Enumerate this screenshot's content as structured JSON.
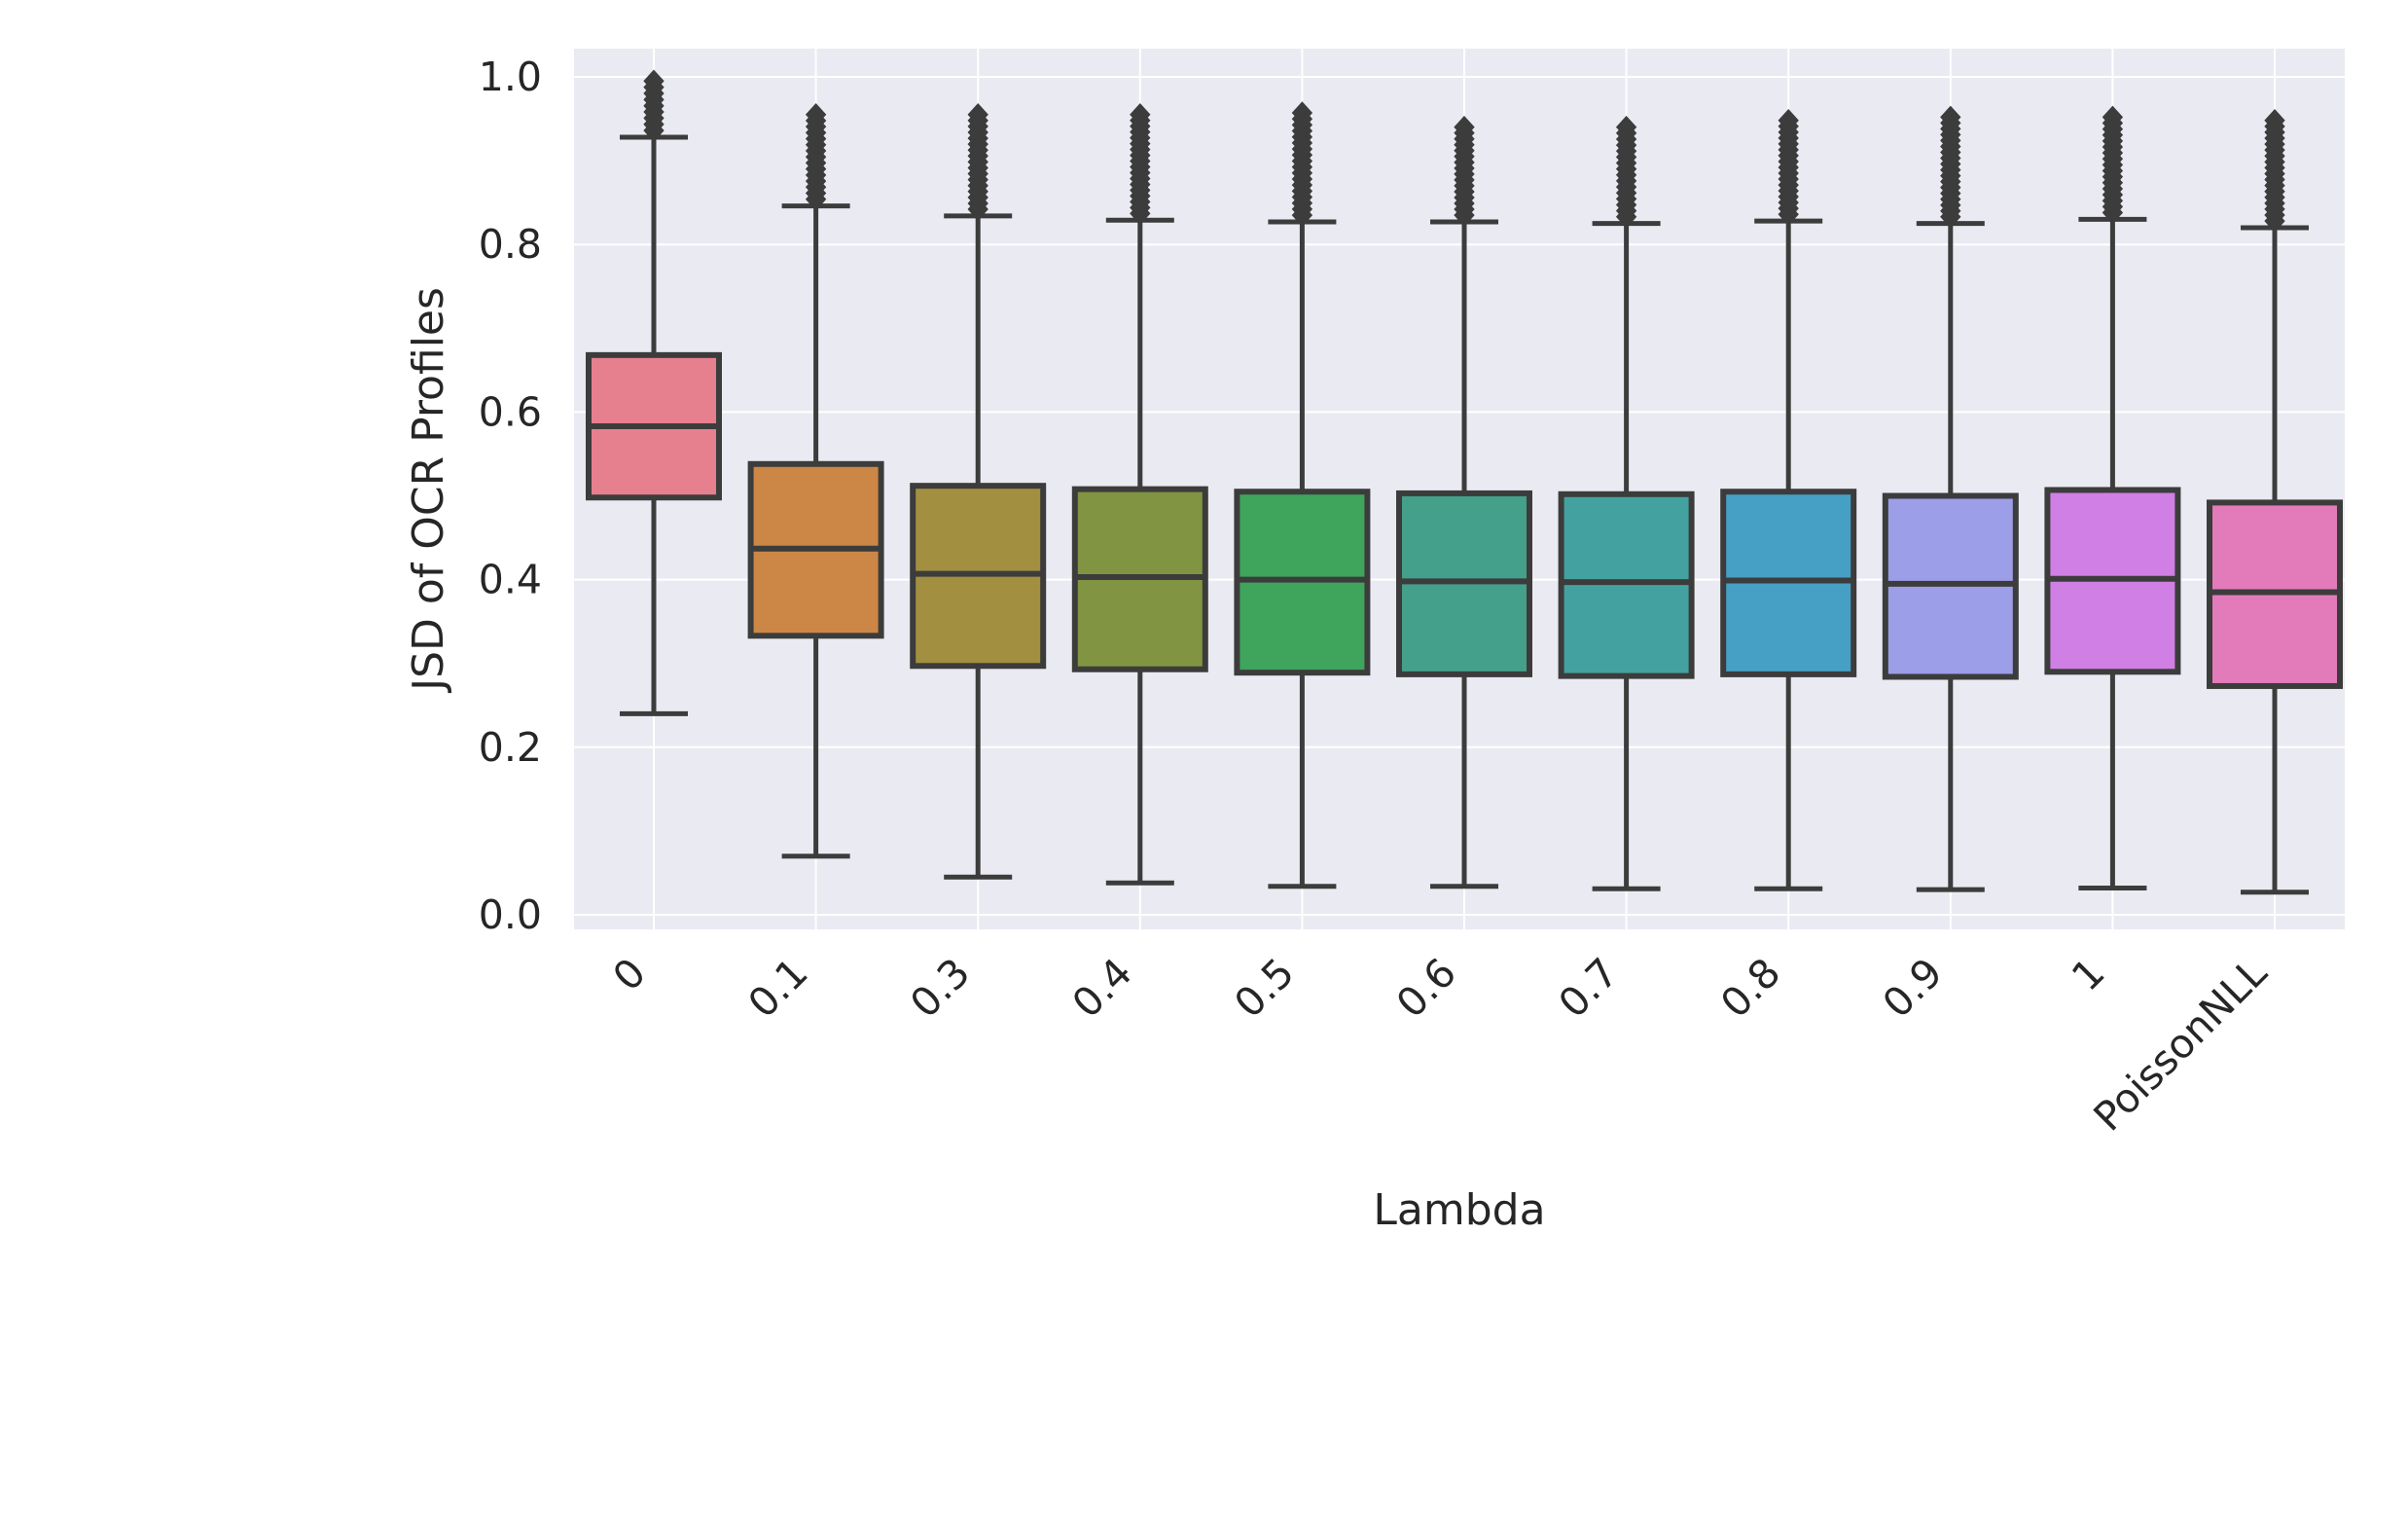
{
  "chart_data": {
    "type": "box",
    "title": "",
    "xlabel": "Lambda",
    "ylabel": "JSD of OCR Profiles",
    "ylim": [
      -0.02,
      1.02
    ],
    "yticks": [
      0.0,
      0.2,
      0.4,
      0.6,
      0.8,
      1.0
    ],
    "ytick_labels": [
      "0.0",
      "0.2",
      "0.4",
      "0.6",
      "0.8",
      "1.0"
    ],
    "grid": true,
    "background": "#eaeaf2",
    "categories": [
      "0",
      "0.1",
      "0.3",
      "0.4",
      "0.5",
      "0.6",
      "0.7",
      "0.8",
      "0.9",
      "1",
      "PoissonNLL"
    ],
    "series": [
      {
        "category": "0",
        "whislo": 0.24,
        "q1": 0.498,
        "med": 0.583,
        "q3": 0.668,
        "whishi": 0.928,
        "outlier_max": 0.995,
        "color": "#e67f8e"
      },
      {
        "category": "0.1",
        "whislo": 0.07,
        "q1": 0.333,
        "med": 0.437,
        "q3": 0.538,
        "whishi": 0.846,
        "outlier_max": 0.955,
        "color": "#cc8746"
      },
      {
        "category": "0.3",
        "whislo": 0.045,
        "q1": 0.297,
        "med": 0.407,
        "q3": 0.512,
        "whishi": 0.834,
        "outlier_max": 0.955,
        "color": "#a38f40"
      },
      {
        "category": "0.4",
        "whislo": 0.038,
        "q1": 0.293,
        "med": 0.403,
        "q3": 0.508,
        "whishi": 0.829,
        "outlier_max": 0.955,
        "color": "#819442"
      },
      {
        "category": "0.5",
        "whislo": 0.034,
        "q1": 0.289,
        "med": 0.4,
        "q3": 0.505,
        "whishi": 0.827,
        "outlier_max": 0.957,
        "color": "#3fa45c"
      },
      {
        "category": "0.6",
        "whislo": 0.034,
        "q1": 0.287,
        "med": 0.398,
        "q3": 0.503,
        "whishi": 0.827,
        "outlier_max": 0.94,
        "color": "#44a08a"
      },
      {
        "category": "0.7",
        "whislo": 0.031,
        "q1": 0.285,
        "med": 0.397,
        "q3": 0.502,
        "whishi": 0.825,
        "outlier_max": 0.94,
        "color": "#43a2a0"
      },
      {
        "category": "0.8",
        "whislo": 0.031,
        "q1": 0.287,
        "med": 0.399,
        "q3": 0.505,
        "whishi": 0.828,
        "outlier_max": 0.948,
        "color": "#46a0c6"
      },
      {
        "category": "0.9",
        "whislo": 0.03,
        "q1": 0.284,
        "med": 0.395,
        "q3": 0.5,
        "whishi": 0.825,
        "outlier_max": 0.952,
        "color": "#9c9ee8"
      },
      {
        "category": "1",
        "whislo": 0.032,
        "q1": 0.29,
        "med": 0.401,
        "q3": 0.507,
        "whishi": 0.83,
        "outlier_max": 0.952,
        "color": "#d07fe4"
      },
      {
        "category": "PoissonNLL",
        "whislo": 0.027,
        "q1": 0.273,
        "med": 0.385,
        "q3": 0.492,
        "whishi": 0.82,
        "outlier_max": 0.948,
        "color": "#e37bbb"
      }
    ],
    "line_color": "#3c3c3c",
    "grid_color": "#ffffff"
  }
}
